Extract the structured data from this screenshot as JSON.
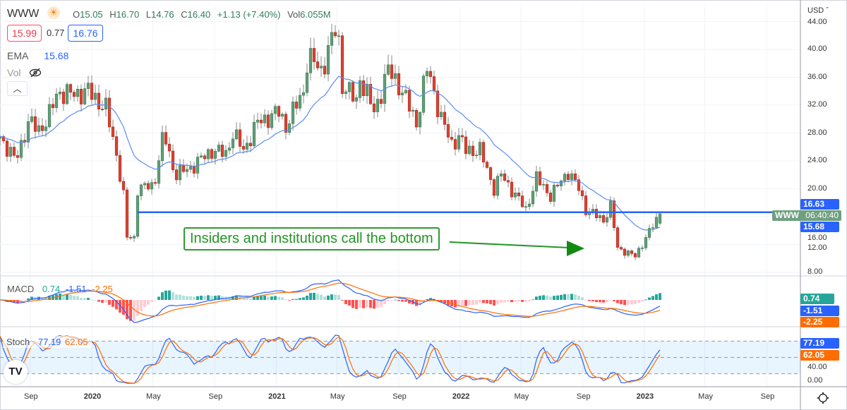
{
  "legend": {
    "symbol": "WWW",
    "session_icon": "sun-icon",
    "open_label": "O",
    "open": "15.05",
    "high_label": "H",
    "high": "16.70",
    "low_label": "L",
    "low": "14.76",
    "close_label": "C",
    "close": "16.40",
    "change": "+1.13 (+7.40%)",
    "volume_label": "Vol",
    "volume": "6.055M",
    "bid": "15.99",
    "spread": "0.77",
    "ask": "16.76",
    "ema_label": "EMA",
    "ema_value": "15.68",
    "vol_indicator_label": "Vol",
    "vol_hidden_icon": "eye-slash-icon",
    "collapse_icon": "chevron-up-icon"
  },
  "price_axis": {
    "currency": "USD",
    "ticks": [
      "44.00",
      "40.00",
      "36.00",
      "32.00",
      "28.00",
      "24.00",
      "20.00",
      "16.00",
      "12.00",
      "8.00"
    ],
    "last_price_tag": "16.63",
    "ema_tag": "15.68",
    "symbol_tag": "WWW",
    "countdown": "06:40:40"
  },
  "macd": {
    "label": "MACD",
    "hist": "0.74",
    "macd": "-1.51",
    "signal": "-2.25"
  },
  "stoch": {
    "label": "Stoch",
    "k": "77.19",
    "d": "62.05",
    "tick_mid": "40.00",
    "tick_zero": "0.00"
  },
  "time_axis": [
    "Sep",
    "2020",
    "May",
    "Sep",
    "2021",
    "May",
    "Sep",
    "2022",
    "May",
    "Sep",
    "2023",
    "May",
    "Sep"
  ],
  "annotation": "Insiders and institutions call the bottom",
  "settings_icon": "gear-icon",
  "colors": {
    "up": "#5f9f77",
    "down": "#dd4231",
    "ema": "#5b8def",
    "level_line": "#2962ff",
    "macd": "#2962ff",
    "signal": "#ff6d00",
    "annotation": "#229622"
  },
  "chart_data": {
    "type": "candlestick",
    "interval": "weekly",
    "horizontal_level": 16.63,
    "ylim": [
      8,
      44
    ],
    "indicators": [
      "EMA",
      "MACD",
      "Stoch"
    ],
    "close_keypoints": [
      [
        "2019-07-03",
        27.5
      ],
      [
        "2019-08-03",
        24
      ],
      [
        "2019-08-28",
        29.5
      ],
      [
        "2019-09-18",
        28.5
      ],
      [
        "2019-10-06",
        30
      ],
      [
        "2019-10-26",
        34
      ],
      [
        "2019-11-20",
        33.5
      ],
      [
        "2019-12-25",
        34
      ],
      [
        "2020-01-29",
        31.5
      ],
      [
        "2020-02-19",
        25
      ],
      [
        "2020-03-04",
        19
      ],
      [
        "2020-03-11",
        13
      ],
      [
        "2020-03-25",
        13
      ],
      [
        "2020-04-01",
        20
      ],
      [
        "2020-05-03",
        20.5
      ],
      [
        "2020-05-23",
        28
      ],
      [
        "2020-06-14",
        22
      ],
      [
        "2020-07-15",
        23
      ],
      [
        "2020-08-26",
        25.5
      ],
      [
        "2020-09-23",
        25
      ],
      [
        "2020-10-07",
        28
      ],
      [
        "2020-10-28",
        25.5
      ],
      [
        "2020-11-25",
        29.5
      ],
      [
        "2021-01-06",
        31
      ],
      [
        "2021-01-20",
        29
      ],
      [
        "2021-02-24",
        34
      ],
      [
        "2021-03-04",
        39
      ],
      [
        "2021-03-31",
        37
      ],
      [
        "2021-05-02",
        43.5
      ],
      [
        "2021-05-12",
        35
      ],
      [
        "2021-06-09",
        32.5
      ],
      [
        "2021-06-16",
        36
      ],
      [
        "2021-07-14",
        31
      ],
      [
        "2021-08-11",
        37
      ],
      [
        "2021-09-01",
        35
      ],
      [
        "2021-10-06",
        29.5
      ],
      [
        "2021-10-28",
        37.5
      ],
      [
        "2021-11-24",
        30
      ],
      [
        "2021-12-15",
        26.5
      ],
      [
        "2021-12-29",
        27.5
      ],
      [
        "2022-01-12",
        25.5
      ],
      [
        "2022-02-09",
        25.5
      ],
      [
        "2022-03-09",
        20
      ],
      [
        "2022-03-23",
        22
      ],
      [
        "2022-05-11",
        17
      ],
      [
        "2022-06-01",
        21.5
      ],
      [
        "2022-06-29",
        19
      ],
      [
        "2022-08-03",
        22.5
      ],
      [
        "2022-08-24",
        20
      ],
      [
        "2022-09-07",
        17
      ],
      [
        "2022-10-12",
        15.5
      ],
      [
        "2022-10-26",
        17.5
      ],
      [
        "2022-11-09",
        11.5
      ],
      [
        "2022-12-14",
        10.3
      ],
      [
        "2023-01-04",
        13
      ],
      [
        "2023-01-25",
        15.5
      ],
      [
        "2023-02-01",
        16.4
      ]
    ]
  }
}
